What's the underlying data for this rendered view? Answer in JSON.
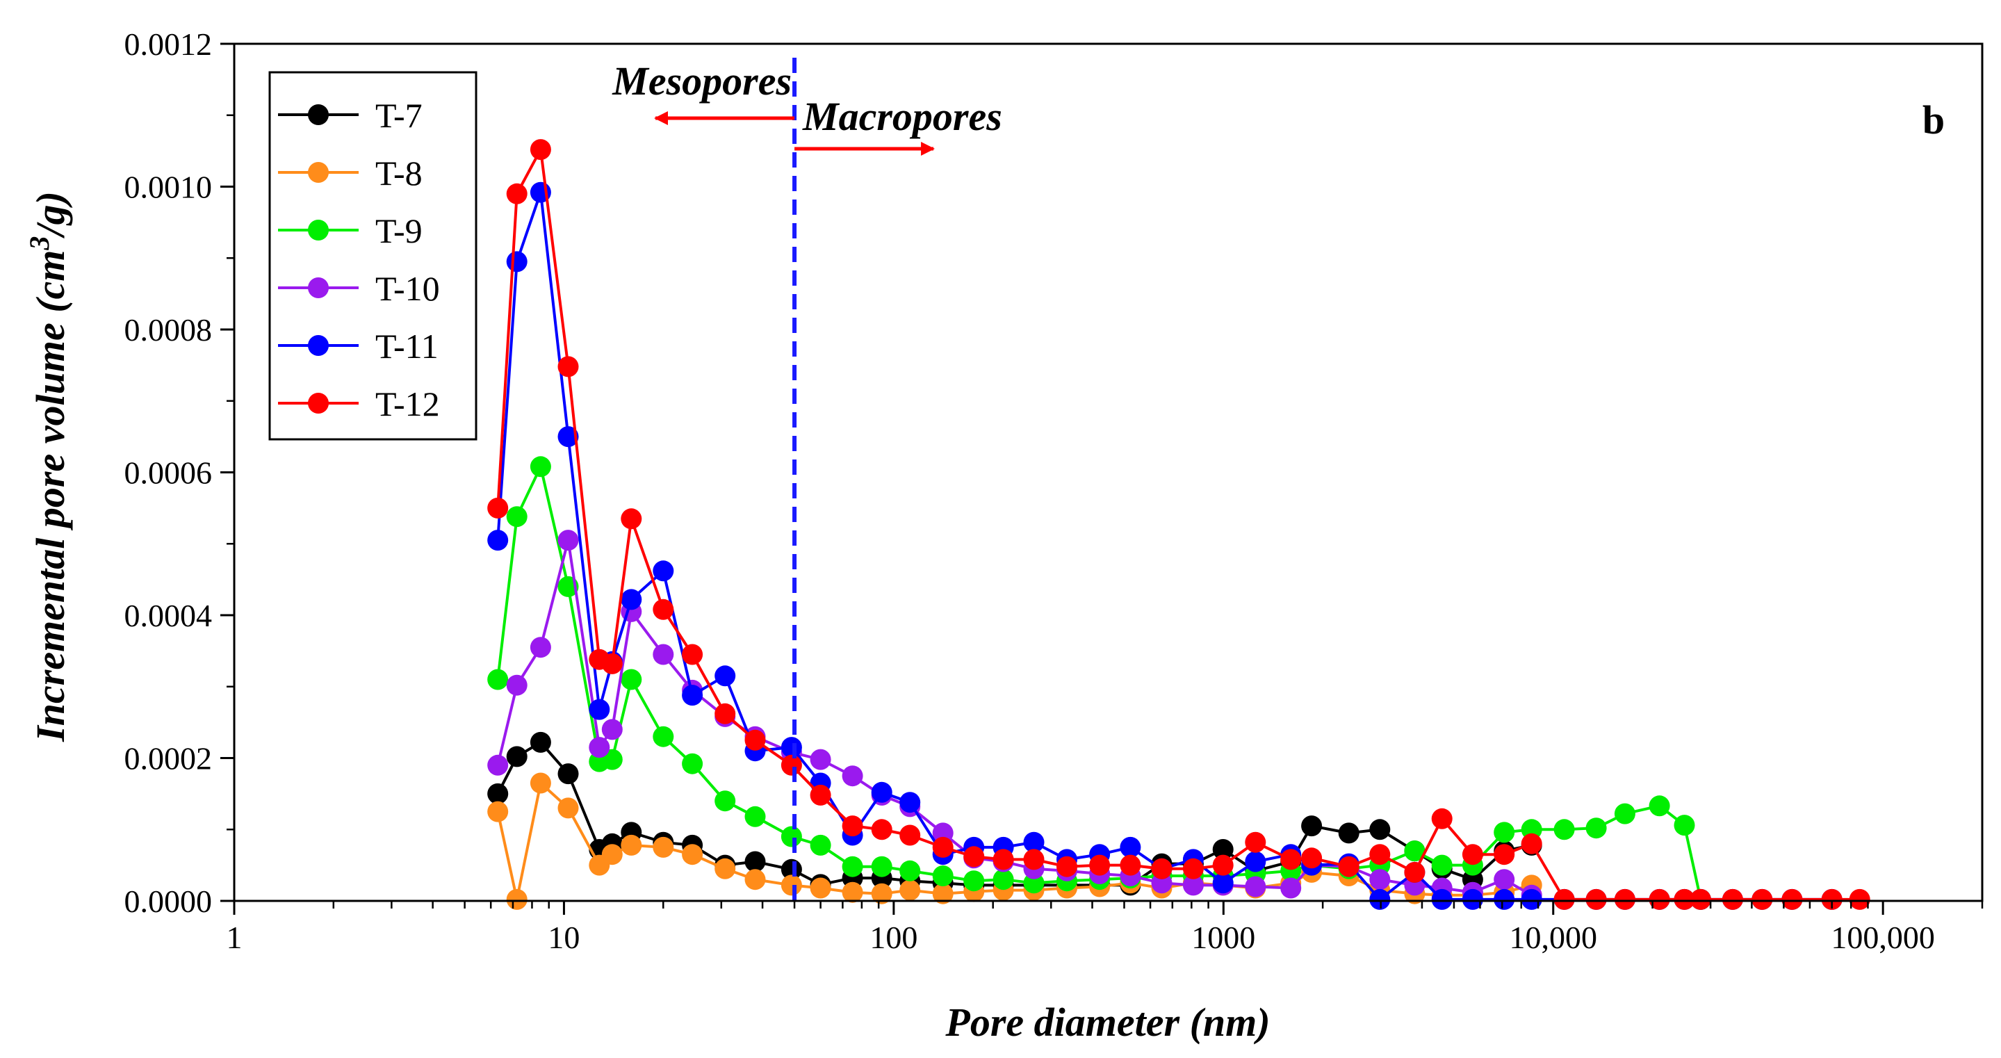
{
  "chart_data": {
    "type": "line",
    "panel_label": "b",
    "xlabel": "Pore diameter (nm)",
    "ylabel": {
      "prefix": "Incremental pore volume  (cm",
      "sup": "3",
      "suffix": "/g)"
    },
    "xscale": "log",
    "xlim": [
      1,
      200000
    ],
    "ylim": [
      0,
      0.0012
    ],
    "x_ticks": [
      {
        "value": 1,
        "label": "1"
      },
      {
        "value": 10,
        "label": "10"
      },
      {
        "value": 100,
        "label": "100"
      },
      {
        "value": 1000,
        "label": "1000"
      },
      {
        "value": 10000,
        "label": "10,000"
      },
      {
        "value": 100000,
        "label": "100,000"
      }
    ],
    "y_ticks": [
      {
        "value": 0,
        "label": "0.0000"
      },
      {
        "value": 0.0002,
        "label": "0.0002"
      },
      {
        "value": 0.0004,
        "label": "0.0004"
      },
      {
        "value": 0.0006,
        "label": "0.0006"
      },
      {
        "value": 0.0008,
        "label": "0.0008"
      },
      {
        "value": 0.001,
        "label": "0.0010"
      },
      {
        "value": 0.0012,
        "label": "0.0012"
      }
    ],
    "legend_position": "top-left",
    "annotations": {
      "boundary_x": 50,
      "left_label": "Mesopores",
      "right_label": "Macropores",
      "arrow_color": "#ff0000",
      "line_color": "#1a1aff"
    },
    "x": [
      6.3,
      7.2,
      8.5,
      10.3,
      12.8,
      14,
      16,
      20,
      24.5,
      30.8,
      38,
      49,
      60,
      75,
      92,
      112,
      141,
      175,
      215,
      266,
      335,
      421,
      522,
      650,
      810,
      997,
      1250,
      1600,
      1850,
      2400,
      2980,
      3800,
      4600,
      5700,
      7100,
      8600,
      10800,
      13500,
      16500,
      21000,
      25000,
      28000,
      35000,
      43000,
      53000,
      70000,
      85000
    ],
    "series": [
      {
        "name": "T-7",
        "color": "#000000",
        "values": [
          0.00015,
          0.000202,
          0.000222,
          0.000178,
          7.2e-05,
          8e-05,
          9.6e-05,
          8.2e-05,
          7.8e-05,
          5e-05,
          5.5e-05,
          4.4e-05,
          2.3e-05,
          3.2e-05,
          3.2e-05,
          2.8e-05,
          2.5e-05,
          2.2e-05,
          2.2e-05,
          2.2e-05,
          2.2e-05,
          2.2e-05,
          2.2e-05,
          5.2e-05,
          5.2e-05,
          7.2e-05,
          4.2e-05,
          5.5e-05,
          0.000105,
          9.5e-05,
          0.0001,
          7e-05,
          4.5e-05,
          3e-05,
          7e-05,
          7.8e-05,
          null,
          null,
          null,
          null,
          null,
          null,
          null,
          null,
          null,
          null,
          null
        ]
      },
      {
        "name": "T-8",
        "color": "#ff8c1a",
        "values": [
          0.000125,
          2e-06,
          0.000165,
          0.00013,
          5e-05,
          6.5e-05,
          7.8e-05,
          7.5e-05,
          6.5e-05,
          4.5e-05,
          3e-05,
          2.2e-05,
          1.8e-05,
          1.2e-05,
          1e-05,
          1.5e-05,
          1e-05,
          1.3e-05,
          1.5e-05,
          1.5e-05,
          1.8e-05,
          2e-05,
          2.5e-05,
          1.8e-05,
          2.5e-05,
          2.2e-05,
          1.8e-05,
          2.5e-05,
          4e-05,
          3.5e-05,
          1.5e-05,
          1e-05,
          8e-06,
          8e-06,
          1.2e-05,
          2.2e-05,
          null,
          null,
          null,
          null,
          null,
          null,
          null,
          null,
          null,
          null,
          null
        ]
      },
      {
        "name": "T-9",
        "color": "#00ee00",
        "values": [
          0.00031,
          0.000538,
          0.000608,
          0.00044,
          0.000195,
          0.000198,
          0.00031,
          0.00023,
          0.000192,
          0.00014,
          0.000118,
          9e-05,
          7.8e-05,
          4.8e-05,
          4.8e-05,
          4.2e-05,
          3.5e-05,
          2.8e-05,
          3e-05,
          2.5e-05,
          2.8e-05,
          3e-05,
          3.2e-05,
          3.5e-05,
          3.5e-05,
          3.5e-05,
          3.8e-05,
          4.2e-05,
          5e-05,
          4.5e-05,
          5e-05,
          7e-05,
          5e-05,
          5e-05,
          9.6e-05,
          0.0001,
          0.0001,
          0.000102,
          0.000122,
          0.000133,
          0.000106,
          2e-06,
          null,
          null,
          null,
          null,
          null
        ]
      },
      {
        "name": "T-10",
        "color": "#9a1aee",
        "values": [
          0.00019,
          0.000302,
          0.000355,
          0.000505,
          0.000215,
          0.00024,
          0.000405,
          0.000345,
          0.000295,
          0.000258,
          0.00023,
          0.000208,
          0.000198,
          0.000175,
          0.000148,
          0.000132,
          9.5e-05,
          6e-05,
          5.5e-05,
          4.5e-05,
          4.2e-05,
          3.8e-05,
          3.5e-05,
          2.5e-05,
          2.2e-05,
          2.2e-05,
          2e-05,
          1.8e-05,
          5e-05,
          4.8e-05,
          3e-05,
          2.2e-05,
          1.8e-05,
          1.2e-05,
          3e-05,
          8e-06,
          null,
          null,
          null,
          null,
          null,
          null,
          null,
          null,
          null,
          null,
          null
        ]
      },
      {
        "name": "T-11",
        "color": "#0000ff",
        "values": [
          0.000505,
          0.000895,
          0.000992,
          0.00065,
          0.000268,
          0.000335,
          0.000422,
          0.000462,
          0.000288,
          0.000315,
          0.00021,
          0.000215,
          0.000165,
          9.2e-05,
          0.000152,
          0.000138,
          6.5e-05,
          7.5e-05,
          7.5e-05,
          8.2e-05,
          5.8e-05,
          6.5e-05,
          7.5e-05,
          4.5e-05,
          5.8e-05,
          2.5e-05,
          5.5e-05,
          6.5e-05,
          5e-05,
          5.2e-05,
          2e-06,
          4e-05,
          2e-06,
          2e-06,
          2e-06,
          2e-06,
          2e-06,
          2e-06,
          2e-06,
          2e-06,
          2e-06,
          2e-06,
          2e-06,
          2e-06,
          2e-06,
          2e-06,
          null
        ]
      },
      {
        "name": "T-12",
        "color": "#ff0000",
        "values": [
          0.00055,
          0.00099,
          0.001052,
          0.000748,
          0.000338,
          0.000332,
          0.000535,
          0.000408,
          0.000345,
          0.000262,
          0.000225,
          0.00019,
          0.000148,
          0.000105,
          0.0001,
          9.2e-05,
          7.5e-05,
          6.2e-05,
          5.8e-05,
          5.8e-05,
          4.8e-05,
          5e-05,
          5e-05,
          4.5e-05,
          4.5e-05,
          5e-05,
          8.2e-05,
          5.8e-05,
          6e-05,
          4.8e-05,
          6.5e-05,
          4e-05,
          0.000115,
          6.5e-05,
          6.5e-05,
          8e-05,
          2e-06,
          2e-06,
          2e-06,
          2e-06,
          2e-06,
          2e-06,
          2e-06,
          2e-06,
          2e-06,
          2e-06,
          2e-06
        ]
      }
    ]
  }
}
